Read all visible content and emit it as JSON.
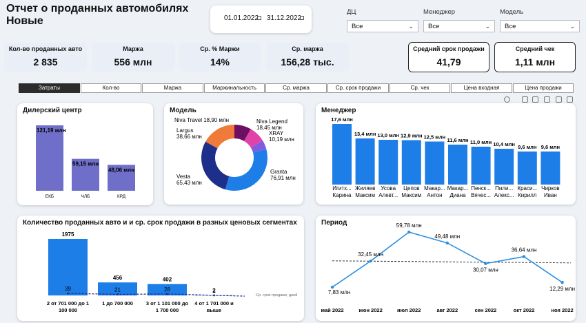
{
  "header": {
    "title_line1": "Отчет о проданных автомобилях",
    "title_line2": "Новые"
  },
  "dates": {
    "from": "01.01.2022",
    "to": "31.12.2022"
  },
  "filters": [
    {
      "label": "ДЦ",
      "value": "Все"
    },
    {
      "label": "Менеджер",
      "value": "Все"
    },
    {
      "label": "Модель",
      "value": "Все"
    }
  ],
  "kpis": [
    {
      "label": "Кол-во проданных авто",
      "value": "2 835"
    },
    {
      "label": "Маржа",
      "value": "556 млн"
    },
    {
      "label": "Ср. % Маржи",
      "value": "14%"
    },
    {
      "label": "Ср. маржа",
      "value": "156,28 тыс."
    },
    {
      "label": "Средний срок продажи",
      "value": "41,79"
    },
    {
      "label": "Средний чек",
      "value": "1,11 млн"
    }
  ],
  "tabs": [
    "Затраты",
    "Кол-во",
    "Маржа",
    "Маржинальность",
    "Ср. маржа",
    "Ср. срок продажи",
    "Ср. чек",
    "Цена входная",
    "Цена продажи"
  ],
  "dealer": {
    "title": "Дилерский центр",
    "categories": [
      "ЕКБ",
      "ЧЛБ",
      "КРД"
    ],
    "values": [
      121.19,
      59.15,
      48.06
    ],
    "labels": [
      "121,19 млн",
      "59,15 млн",
      "48,06 млн"
    ]
  },
  "model": {
    "title": "Модель",
    "slices": [
      {
        "name": "Granta",
        "value": 76.91,
        "label": "76,91 млн",
        "color": "#1e7ee8"
      },
      {
        "name": "Vesta",
        "value": 65.43,
        "label": "65,43 млн",
        "color": "#1d2f8a"
      },
      {
        "name": "Largus",
        "value": 38.66,
        "label": "38,66 млн",
        "color": "#ef7a3a"
      },
      {
        "name": "Niva Travel",
        "value": 18.9,
        "label": "18,90 млн",
        "color": "#6e0f63"
      },
      {
        "name": "Niva Legend",
        "value": 18.45,
        "label": "18,45 млн",
        "color": "#e042a8"
      },
      {
        "name": "XRAY",
        "value": 10.19,
        "label": "10,19 млн",
        "color": "#7f5ce0"
      }
    ]
  },
  "manager": {
    "title": "Менеджер",
    "values": [
      17.6,
      13.4,
      13.0,
      12.9,
      12.5,
      11.6,
      11.0,
      10.4,
      9.6,
      9.6
    ],
    "labels": [
      "17,6 млн",
      "13,4 млн",
      "13,0 млн",
      "12,9 млн",
      "12,5 млн",
      "11,6 млн",
      "11,0 млн",
      "10,4 млн",
      "9,6 млн",
      "9,6 млн"
    ],
    "names": [
      [
        "Игитх...",
        "Карина"
      ],
      [
        "Жиляев",
        "Максим"
      ],
      [
        "Усова",
        "Алевт..."
      ],
      [
        "Цепов",
        "Максим"
      ],
      [
        "Макар...",
        "Антон"
      ],
      [
        "Макар...",
        "Диана"
      ],
      [
        "Пенск...",
        "Вячес..."
      ],
      [
        "Пили...",
        "Алекс..."
      ],
      [
        "Краси...",
        "Кирилл"
      ],
      [
        "Чирков",
        "Иван"
      ]
    ]
  },
  "segments": {
    "title": "Количество проданных авто и и ср. срок продажи в разных ценовых сегментах",
    "categories": [
      [
        "2 от 701 000 до 1",
        "100 000"
      ],
      [
        "1 до 700 000"
      ],
      [
        "3 от 1 101 000 до",
        "1 700 000"
      ],
      [
        "4 от 1 701 000 и",
        "выше"
      ]
    ],
    "counts": [
      1975,
      456,
      402,
      2
    ],
    "days": [
      39,
      21,
      28,
      2
    ],
    "line_legend": "Ср. срок продажи, дней"
  },
  "period": {
    "title": "Период",
    "months": [
      "май 2022",
      "июн 2022",
      "июл 2022",
      "авг 2022",
      "сен 2022",
      "окт 2022",
      "ноя 2022"
    ],
    "values": [
      7.83,
      32.45,
      59.78,
      49.48,
      30.07,
      36.64,
      12.29
    ],
    "labels": [
      "7,83 млн",
      "32,45 млн",
      "59,78 млн",
      "49,48 млн",
      "30,07 млн",
      "36,64 млн",
      "12,29 млн"
    ]
  },
  "colors": {
    "bar_purple": "#6f6fc9",
    "bar_blue": "#1e7ee8",
    "line_blue": "#2b8fe0",
    "dark_blue": "#1d2f8a"
  }
}
